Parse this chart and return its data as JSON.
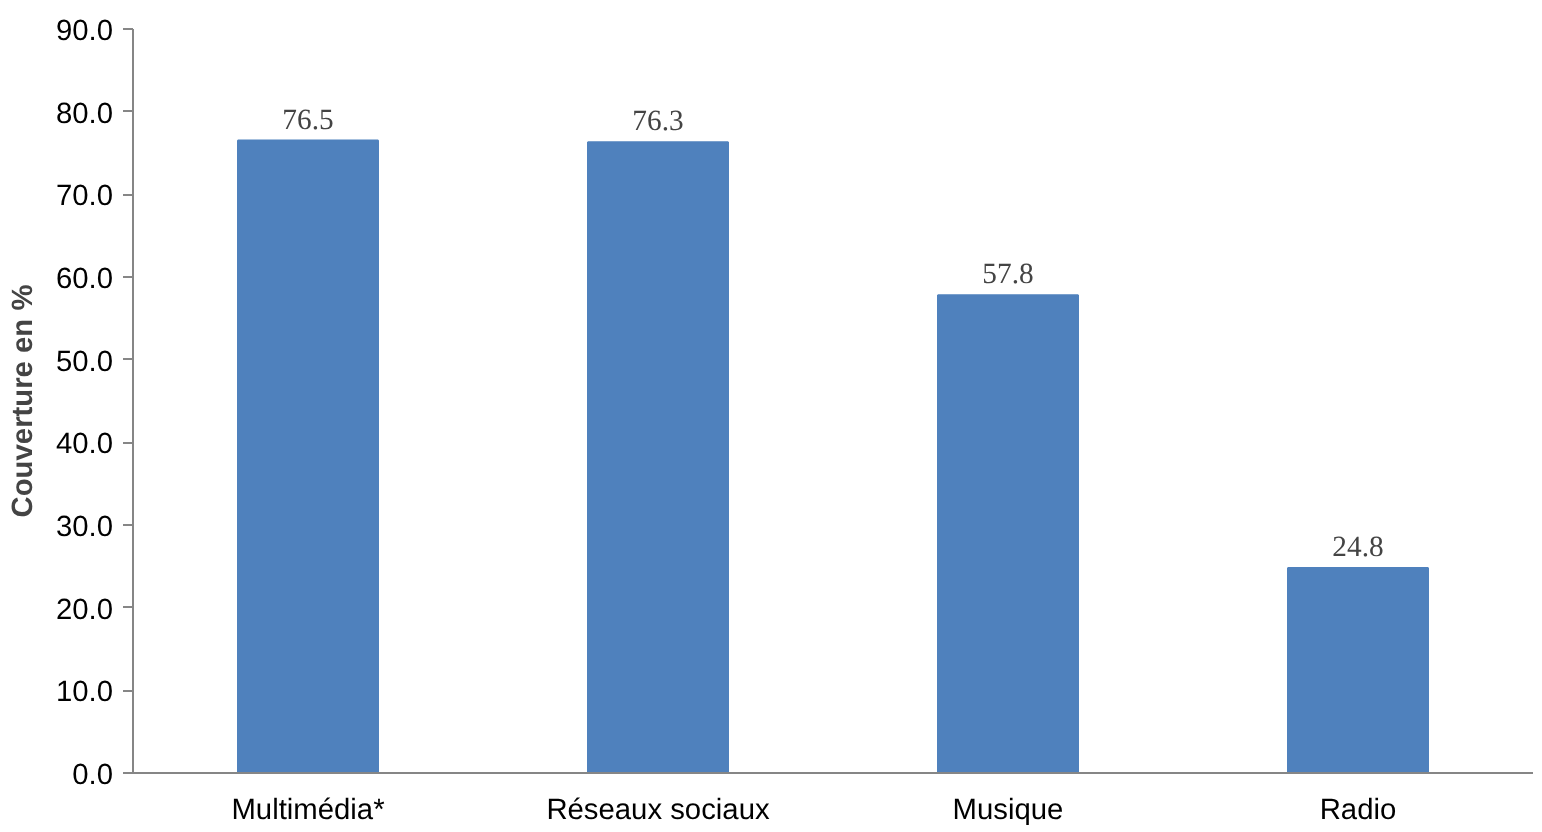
{
  "chart_data": {
    "type": "bar",
    "ylabel": "Couverture en %",
    "categories": [
      "Multimédia*",
      "Réseaux sociaux",
      "Musique",
      "Radio"
    ],
    "values": [
      76.5,
      76.3,
      57.8,
      24.8
    ],
    "color": "#4f81bd",
    "ylim": [
      0,
      90
    ],
    "yticks": [
      {
        "value": 0,
        "label": "0.0"
      },
      {
        "value": 10,
        "label": "10.0"
      },
      {
        "value": 20,
        "label": "20.0"
      },
      {
        "value": 30,
        "label": "30.0"
      },
      {
        "value": 40,
        "label": "40.0"
      },
      {
        "value": 50,
        "label": "50.0"
      },
      {
        "value": 60,
        "label": "60.0"
      },
      {
        "value": 70,
        "label": "70.0"
      },
      {
        "value": 80,
        "label": "80.0"
      },
      {
        "value": 90,
        "label": "90.0"
      }
    ],
    "data_labels": true,
    "grid": false
  }
}
